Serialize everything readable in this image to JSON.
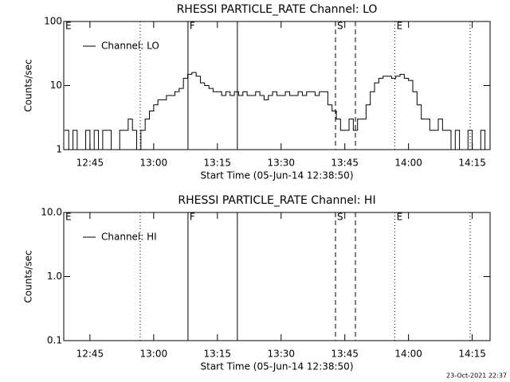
{
  "chart_data": [
    {
      "type": "line",
      "title": "RHESSI PARTICLE_RATE Channel: LO",
      "xlabel": "Start Time (05-Jun-14 12:38:50)",
      "ylabel": "Counts/sec",
      "x": [
        759,
        760,
        761,
        762,
        763,
        764,
        765,
        766,
        767,
        768,
        769,
        770,
        771,
        772,
        773,
        774,
        775,
        776,
        777,
        778,
        779,
        780,
        781,
        782,
        783,
        784,
        785,
        786,
        787,
        788,
        789,
        790,
        791,
        792,
        793,
        794,
        795,
        796,
        797,
        798,
        799,
        800,
        801,
        802,
        803,
        804,
        805,
        806,
        807,
        808,
        809,
        810,
        811,
        812,
        813,
        814,
        815,
        816,
        817,
        818,
        819,
        820,
        821,
        822,
        823,
        824,
        825,
        826,
        827,
        828,
        829,
        830,
        831,
        832,
        833,
        834,
        835,
        836,
        837,
        838,
        839,
        840,
        841,
        842,
        843,
        844,
        845,
        846,
        847,
        848,
        849,
        850,
        851,
        852,
        853,
        854,
        855,
        856,
        857,
        858
      ],
      "series": [
        {
          "name": "Channel: LO",
          "color": "#000000",
          "values": [
            2,
            1,
            2,
            1,
            1,
            2,
            1,
            2,
            1,
            2,
            2,
            1,
            1,
            2,
            2,
            3,
            2,
            1,
            2,
            3,
            4,
            5,
            6,
            6,
            7,
            7,
            8,
            9,
            13,
            15,
            16,
            14,
            11,
            10,
            9,
            8,
            8,
            7,
            8,
            7,
            8,
            7,
            8,
            7,
            7,
            8,
            7,
            6,
            7,
            8,
            7,
            7,
            8,
            7,
            7,
            8,
            7,
            8,
            8,
            7,
            8,
            8,
            5,
            4,
            3,
            2,
            2,
            3,
            2,
            3,
            3,
            5,
            8,
            11,
            13,
            14,
            14,
            13,
            14,
            15,
            13,
            12,
            8,
            5,
            3,
            3,
            2,
            2,
            3,
            2,
            2,
            1,
            2,
            1,
            1,
            2,
            1,
            1,
            2,
            1
          ]
        }
      ],
      "xlim": [
        758.83,
        859.2
      ],
      "xticks": [
        {
          "value": 765,
          "label": "12:45"
        },
        {
          "value": 780,
          "label": "13:00"
        },
        {
          "value": 795,
          "label": "13:15"
        },
        {
          "value": 810,
          "label": "13:30"
        },
        {
          "value": 825,
          "label": "13:45"
        },
        {
          "value": 840,
          "label": "14:00"
        },
        {
          "value": 855,
          "label": "14:15"
        }
      ],
      "ylim": [
        1,
        100
      ],
      "yticks": [
        1,
        10,
        100
      ],
      "log_y": true,
      "legend": "upper left",
      "markers": [
        {
          "x": 758.83,
          "style": "none",
          "label": "E"
        },
        {
          "x": 776.83,
          "style": "dotted"
        },
        {
          "x": 788.08,
          "style": "solid",
          "label": "F"
        },
        {
          "x": 799.7,
          "style": "solid"
        },
        {
          "x": 822.8,
          "style": "dashed",
          "label": "S"
        },
        {
          "x": 827.5,
          "style": "dashed"
        },
        {
          "x": 836.8,
          "style": "dotted",
          "label": "E"
        },
        {
          "x": 854.5,
          "style": "dotted"
        }
      ]
    },
    {
      "type": "line",
      "title": "RHESSI PARTICLE_RATE Channel: HI",
      "xlabel": "Start Time (05-Jun-14 12:38:50)",
      "ylabel": "Counts/sec",
      "x": [],
      "series": [
        {
          "name": "Channel: HI",
          "color": "#000000",
          "values": []
        }
      ],
      "xlim": [
        758.83,
        859.2
      ],
      "xticks": [
        {
          "value": 765,
          "label": "12:45"
        },
        {
          "value": 780,
          "label": "13:00"
        },
        {
          "value": 795,
          "label": "13:15"
        },
        {
          "value": 810,
          "label": "13:30"
        },
        {
          "value": 825,
          "label": "13:45"
        },
        {
          "value": 840,
          "label": "14:00"
        },
        {
          "value": 855,
          "label": "14:15"
        }
      ],
      "ylim": [
        0.1,
        10
      ],
      "yticks": [
        0.1,
        {
          "value": 1,
          "label": "1.0"
        },
        {
          "value": 10,
          "label": "10.0"
        }
      ],
      "log_y": true,
      "legend": "upper left",
      "markers": [
        {
          "x": 758.83,
          "style": "none",
          "label": "E"
        },
        {
          "x": 776.83,
          "style": "dotted"
        },
        {
          "x": 788.08,
          "style": "solid",
          "label": "F"
        },
        {
          "x": 799.7,
          "style": "solid"
        },
        {
          "x": 822.8,
          "style": "dashed",
          "label": "S"
        },
        {
          "x": 827.5,
          "style": "dashed"
        },
        {
          "x": 836.8,
          "style": "dotted",
          "label": "E"
        },
        {
          "x": 854.5,
          "style": "dotted"
        }
      ]
    }
  ],
  "footer": "23-Oct-2021 22:37"
}
